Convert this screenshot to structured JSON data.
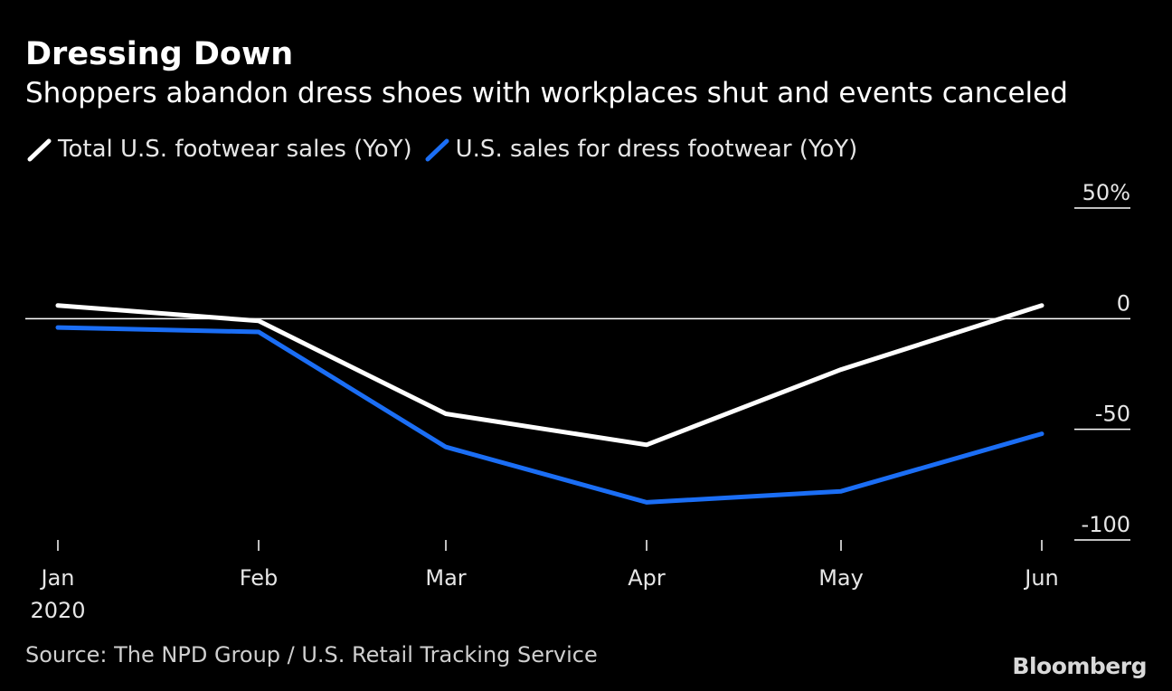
{
  "header": {
    "title": "Dressing Down",
    "subtitle": "Shoppers abandon dress shoes with workplaces shut and events canceled"
  },
  "legend": [
    {
      "label": "Total U.S. footwear sales (YoY)",
      "color": "#ffffff"
    },
    {
      "label": "U.S. sales for dress footwear (YoY)",
      "color": "#1b6ef5"
    }
  ],
  "footer": {
    "source": "Source: The NPD Group / U.S. Retail Tracking Service",
    "logo": "Bloomberg"
  },
  "chart_data": {
    "type": "line",
    "title": "Dressing Down",
    "subtitle": "Shoppers abandon dress shoes with workplaces shut and events canceled",
    "xlabel": "",
    "ylabel": "",
    "categories": [
      "Jan",
      "Feb",
      "Mar",
      "Apr",
      "May",
      "Jun"
    ],
    "year_label": "2020",
    "series": [
      {
        "name": "Total U.S. footwear sales (YoY)",
        "color": "#ffffff",
        "values": [
          6,
          -1,
          -43,
          -57,
          -23,
          6
        ]
      },
      {
        "name": "U.S. sales for dress footwear (YoY)",
        "color": "#1b6ef5",
        "values": [
          -4,
          -6,
          -58,
          -83,
          -78,
          -52
        ]
      }
    ],
    "yticks": [
      {
        "value": 50,
        "label": "50%"
      },
      {
        "value": 0,
        "label": "0"
      },
      {
        "value": -50,
        "label": "-50"
      },
      {
        "value": -100,
        "label": "-100"
      }
    ],
    "ylim": [
      -100,
      50
    ],
    "legend_position": "top-left"
  }
}
